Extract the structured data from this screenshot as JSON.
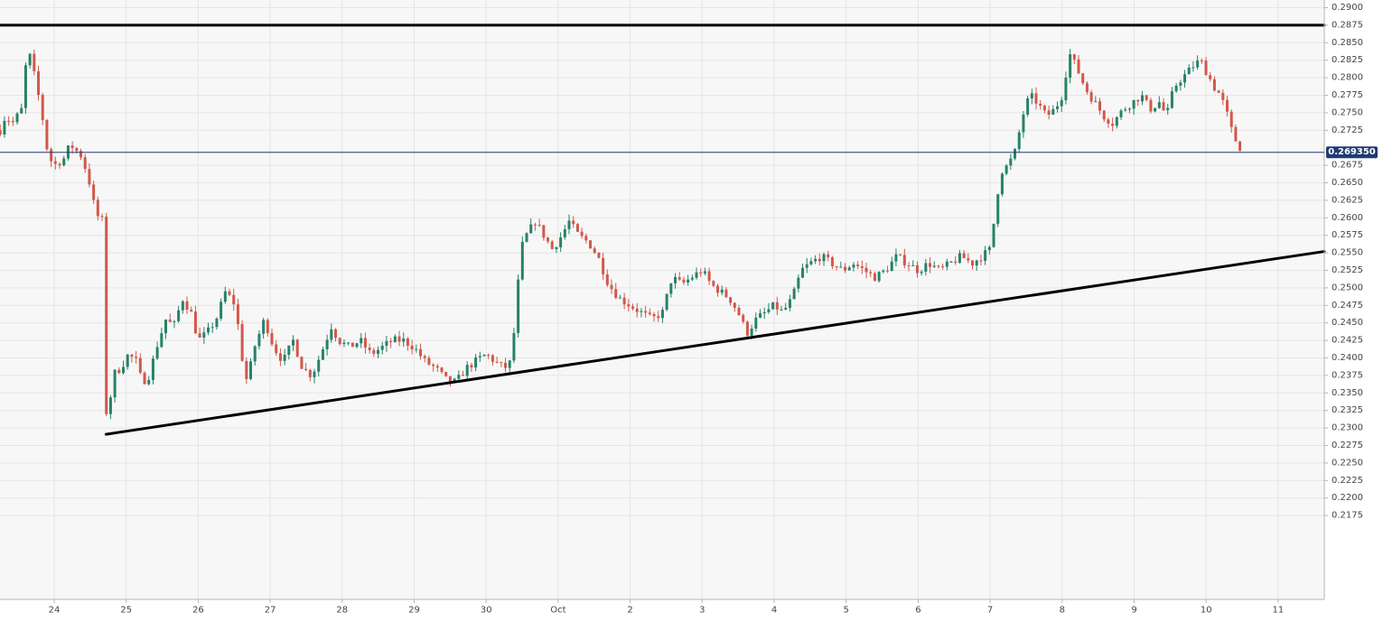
{
  "chart_data": {
    "type": "candlestick",
    "title": "",
    "xlabel": "",
    "ylabel": "",
    "ylim": [
      0.2165,
      0.2905
    ],
    "grid": true,
    "current_price": {
      "label": "0.269350",
      "value": 0.26935
    },
    "y_ticks": [
      {
        "value": 0.29,
        "label": "0.2900"
      },
      {
        "value": 0.2875,
        "label": "0.2875"
      },
      {
        "value": 0.285,
        "label": "0.2850"
      },
      {
        "value": 0.2825,
        "label": "0.2825"
      },
      {
        "value": 0.28,
        "label": "0.2800"
      },
      {
        "value": 0.2775,
        "label": "0.2775"
      },
      {
        "value": 0.275,
        "label": "0.2750"
      },
      {
        "value": 0.2725,
        "label": "0.2725"
      },
      {
        "value": 0.2675,
        "label": "0.2675"
      },
      {
        "value": 0.265,
        "label": "0.2650"
      },
      {
        "value": 0.2625,
        "label": "0.2625"
      },
      {
        "value": 0.26,
        "label": "0.2600"
      },
      {
        "value": 0.2575,
        "label": "0.2575"
      },
      {
        "value": 0.255,
        "label": "0.2550"
      },
      {
        "value": 0.2525,
        "label": "0.2525"
      },
      {
        "value": 0.25,
        "label": "0.2500"
      },
      {
        "value": 0.2475,
        "label": "0.2475"
      },
      {
        "value": 0.245,
        "label": "0.2450"
      },
      {
        "value": 0.2425,
        "label": "0.2425"
      },
      {
        "value": 0.24,
        "label": "0.2400"
      },
      {
        "value": 0.2375,
        "label": "0.2375"
      },
      {
        "value": 0.235,
        "label": "0.2350"
      },
      {
        "value": 0.2325,
        "label": "0.2325"
      },
      {
        "value": 0.23,
        "label": "0.2300"
      },
      {
        "value": 0.2275,
        "label": "0.2275"
      },
      {
        "value": 0.225,
        "label": "0.2250"
      },
      {
        "value": 0.2225,
        "label": "0.2225"
      },
      {
        "value": 0.22,
        "label": "0.2200"
      },
      {
        "value": 0.2175,
        "label": "0.2175"
      }
    ],
    "x_ticks": [
      {
        "day": 24,
        "label": "24"
      },
      {
        "day": 25,
        "label": "25"
      },
      {
        "day": 26,
        "label": "26"
      },
      {
        "day": 27,
        "label": "27"
      },
      {
        "day": 28,
        "label": "28"
      },
      {
        "day": 29,
        "label": "29"
      },
      {
        "day": 30,
        "label": "30"
      },
      {
        "day": 31,
        "label": "Oct"
      },
      {
        "day": 32,
        "label": "2"
      },
      {
        "day": 33,
        "label": "3"
      },
      {
        "day": 34,
        "label": "4"
      },
      {
        "day": 35,
        "label": "5"
      },
      {
        "day": 36,
        "label": "6"
      },
      {
        "day": 37,
        "label": "7"
      },
      {
        "day": 38,
        "label": "8"
      },
      {
        "day": 39,
        "label": "9"
      },
      {
        "day": 40,
        "label": "10"
      },
      {
        "day": 41,
        "label": "11"
      }
    ],
    "x_range": [
      23.25,
      41.75
    ],
    "colors": {
      "up": "#26826a",
      "down": "#d2584a",
      "grid": "#e6e6e6",
      "background": "#f7f7f7",
      "price_line": "#1f3b73",
      "trendline": "#000000",
      "axis_text": "#444444"
    },
    "trendlines": [
      {
        "name": "resistance",
        "points": [
          [
            23.25,
            0.2875
          ],
          [
            41.75,
            0.2875
          ]
        ]
      },
      {
        "name": "support",
        "points": [
          [
            24.72,
            0.2291
          ],
          [
            41.75,
            0.2552
          ]
        ]
      }
    ],
    "anchors": [
      [
        23.25,
        0.2725
      ],
      [
        23.32,
        0.2745
      ],
      [
        23.42,
        0.2735
      ],
      [
        23.55,
        0.2755
      ],
      [
        23.63,
        0.2845
      ],
      [
        23.72,
        0.2805
      ],
      [
        23.82,
        0.2755
      ],
      [
        23.92,
        0.2685
      ],
      [
        24.02,
        0.2676
      ],
      [
        24.14,
        0.2685
      ],
      [
        24.22,
        0.2705
      ],
      [
        24.38,
        0.2688
      ],
      [
        24.48,
        0.2655
      ],
      [
        24.58,
        0.2605
      ],
      [
        24.68,
        0.2595
      ],
      [
        24.72,
        0.2325
      ],
      [
        24.76,
        0.2305
      ],
      [
        24.8,
        0.2375
      ],
      [
        24.92,
        0.2385
      ],
      [
        25.03,
        0.2405
      ],
      [
        25.14,
        0.2395
      ],
      [
        25.22,
        0.2365
      ],
      [
        25.32,
        0.2375
      ],
      [
        25.42,
        0.2415
      ],
      [
        25.55,
        0.2455
      ],
      [
        25.66,
        0.2445
      ],
      [
        25.78,
        0.2485
      ],
      [
        25.9,
        0.2465
      ],
      [
        26.0,
        0.2425
      ],
      [
        26.12,
        0.2435
      ],
      [
        26.25,
        0.2455
      ],
      [
        26.38,
        0.2495
      ],
      [
        26.52,
        0.2475
      ],
      [
        26.6,
        0.2405
      ],
      [
        26.68,
        0.2365
      ],
      [
        26.78,
        0.2415
      ],
      [
        26.92,
        0.2455
      ],
      [
        27.05,
        0.2415
      ],
      [
        27.18,
        0.2395
      ],
      [
        27.32,
        0.2425
      ],
      [
        27.45,
        0.2385
      ],
      [
        27.58,
        0.2375
      ],
      [
        27.7,
        0.2405
      ],
      [
        27.85,
        0.2445
      ],
      [
        27.95,
        0.2425
      ],
      [
        28.1,
        0.2415
      ],
      [
        28.25,
        0.2425
      ],
      [
        28.4,
        0.2405
      ],
      [
        28.55,
        0.2415
      ],
      [
        28.7,
        0.2425
      ],
      [
        28.85,
        0.2425
      ],
      [
        29.0,
        0.2415
      ],
      [
        29.15,
        0.2395
      ],
      [
        29.3,
        0.2385
      ],
      [
        29.45,
        0.2368
      ],
      [
        29.58,
        0.2365
      ],
      [
        29.72,
        0.2385
      ],
      [
        29.85,
        0.2395
      ],
      [
        30.0,
        0.2405
      ],
      [
        30.12,
        0.2395
      ],
      [
        30.25,
        0.2385
      ],
      [
        30.35,
        0.2395
      ],
      [
        30.42,
        0.2475
      ],
      [
        30.48,
        0.2555
      ],
      [
        30.56,
        0.2575
      ],
      [
        30.68,
        0.2595
      ],
      [
        30.8,
        0.2575
      ],
      [
        30.92,
        0.2555
      ],
      [
        31.05,
        0.2575
      ],
      [
        31.15,
        0.2595
      ],
      [
        31.28,
        0.2575
      ],
      [
        31.42,
        0.2565
      ],
      [
        31.55,
        0.2545
      ],
      [
        31.7,
        0.2505
      ],
      [
        31.85,
        0.2485
      ],
      [
        32.0,
        0.2475
      ],
      [
        32.15,
        0.2465
      ],
      [
        32.3,
        0.2455
      ],
      [
        32.45,
        0.2465
      ],
      [
        32.58,
        0.2515
      ],
      [
        32.72,
        0.2505
      ],
      [
        32.85,
        0.2515
      ],
      [
        33.0,
        0.2525
      ],
      [
        33.12,
        0.2505
      ],
      [
        33.25,
        0.2495
      ],
      [
        33.38,
        0.2485
      ],
      [
        33.5,
        0.2465
      ],
      [
        33.62,
        0.2435
      ],
      [
        33.75,
        0.2455
      ],
      [
        33.88,
        0.2465
      ],
      [
        34.0,
        0.2475
      ],
      [
        34.12,
        0.2465
      ],
      [
        34.25,
        0.2485
      ],
      [
        34.38,
        0.2525
      ],
      [
        34.5,
        0.2535
      ],
      [
        34.65,
        0.2545
      ],
      [
        34.8,
        0.2535
      ],
      [
        34.95,
        0.2525
      ],
      [
        35.1,
        0.2535
      ],
      [
        35.25,
        0.2525
      ],
      [
        35.4,
        0.2515
      ],
      [
        35.55,
        0.2525
      ],
      [
        35.7,
        0.2545
      ],
      [
        35.85,
        0.2535
      ],
      [
        36.0,
        0.2525
      ],
      [
        36.15,
        0.2535
      ],
      [
        36.3,
        0.2525
      ],
      [
        36.45,
        0.2535
      ],
      [
        36.6,
        0.2545
      ],
      [
        36.75,
        0.2535
      ],
      [
        36.88,
        0.2545
      ],
      [
        37.0,
        0.2555
      ],
      [
        37.08,
        0.2615
      ],
      [
        37.14,
        0.2665
      ],
      [
        37.25,
        0.2675
      ],
      [
        37.35,
        0.2695
      ],
      [
        37.45,
        0.2745
      ],
      [
        37.55,
        0.2775
      ],
      [
        37.65,
        0.2765
      ],
      [
        37.78,
        0.2745
      ],
      [
        37.9,
        0.2755
      ],
      [
        38.0,
        0.2775
      ],
      [
        38.1,
        0.2835
      ],
      [
        38.2,
        0.2815
      ],
      [
        38.32,
        0.2785
      ],
      [
        38.45,
        0.2765
      ],
      [
        38.58,
        0.2745
      ],
      [
        38.7,
        0.2735
      ],
      [
        38.85,
        0.2755
      ],
      [
        38.98,
        0.2765
      ],
      [
        39.1,
        0.2775
      ],
      [
        39.22,
        0.2755
      ],
      [
        39.35,
        0.2765
      ],
      [
        39.45,
        0.2745
      ],
      [
        39.55,
        0.2785
      ],
      [
        39.62,
        0.2795
      ],
      [
        39.72,
        0.2805
      ],
      [
        39.8,
        0.2815
      ],
      [
        39.92,
        0.2825
      ],
      [
        40.02,
        0.2805
      ],
      [
        40.12,
        0.2785
      ],
      [
        40.2,
        0.2775
      ],
      [
        40.3,
        0.2745
      ],
      [
        40.38,
        0.2715
      ],
      [
        40.45,
        0.2705
      ],
      [
        40.5,
        0.26935
      ]
    ]
  }
}
